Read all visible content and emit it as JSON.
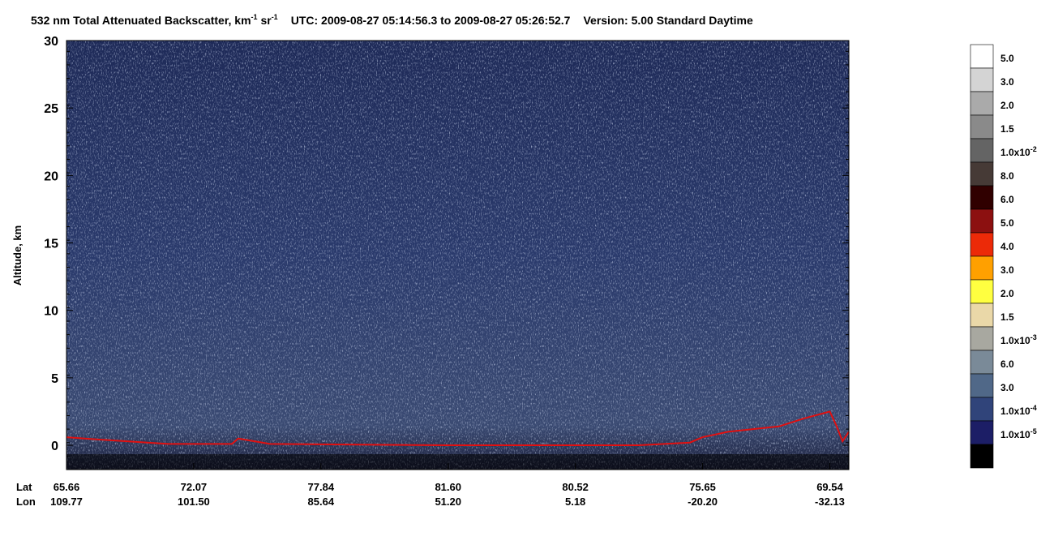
{
  "chart_data": {
    "type": "curtain",
    "title_parts": [
      "532 nm Total Attenuated Backscatter, km",
      "-1",
      " sr",
      "-1",
      "UTC:  2009-08-27 05:14:56.3  to  2009-08-27 05:26:52.7",
      "Version: 5.00  Standard  Daytime"
    ],
    "y_label": "Altitude, km",
    "ylim": [
      -1.8,
      30
    ],
    "yticks": [
      0,
      5,
      10,
      15,
      20,
      25,
      30
    ],
    "xlim": [
      0,
      6.15
    ],
    "xticks": [
      0,
      1,
      2,
      3,
      4,
      5,
      6
    ],
    "lat_title": "Lat",
    "lon_title": "Lon",
    "lat_labels": [
      "65.66",
      "72.07",
      "77.84",
      "81.60",
      "80.52",
      "75.65",
      "69.54"
    ],
    "lon_labels": [
      "109.77",
      "101.50",
      "85.64",
      "51.20",
      "5.18",
      "-20.20",
      "-32.13"
    ],
    "series": [
      {
        "color": "#e01010",
        "x": [
          0,
          0.3,
          0.8,
          1.3,
          1.35,
          1.6,
          3.0,
          4.5,
          4.9,
          5.0,
          5.2,
          5.6,
          5.8,
          6.0,
          6.05,
          6.1,
          6.15
        ],
        "values": [
          0.6,
          0.4,
          0.1,
          0.1,
          0.5,
          0.1,
          0.0,
          0.0,
          0.2,
          0.6,
          1.0,
          1.4,
          2.0,
          2.5,
          1.5,
          0.3,
          1.0
        ]
      }
    ],
    "colorbar": {
      "colors": [
        "#ffffff",
        "#d4d4d4",
        "#aaaaaa",
        "#8a8a8a",
        "#646464",
        "#463a36",
        "#300000",
        "#8c1010",
        "#ec2a08",
        "#ffa000",
        "#ffff40",
        "#ead8a8",
        "#a8a8a0",
        "#7a8a98",
        "#506888",
        "#30447a",
        "#1c1e66",
        "#000000"
      ],
      "labels": [
        {
          "text": "5.0"
        },
        {
          "text": "3.0"
        },
        {
          "text": "2.0"
        },
        {
          "text": "1.5"
        },
        {
          "text": "1.0x10",
          "exp": "-2"
        },
        {
          "text": "8.0"
        },
        {
          "text": "6.0"
        },
        {
          "text": "5.0"
        },
        {
          "text": "4.0"
        },
        {
          "text": "3.0"
        },
        {
          "text": "2.0"
        },
        {
          "text": "1.5"
        },
        {
          "text": "1.0x10",
          "exp": "-3"
        },
        {
          "text": "6.0"
        },
        {
          "text": "3.0"
        },
        {
          "text": "1.0x10",
          "exp": "-4"
        },
        {
          "text": "1.0x10",
          "exp": "-5"
        }
      ]
    }
  }
}
